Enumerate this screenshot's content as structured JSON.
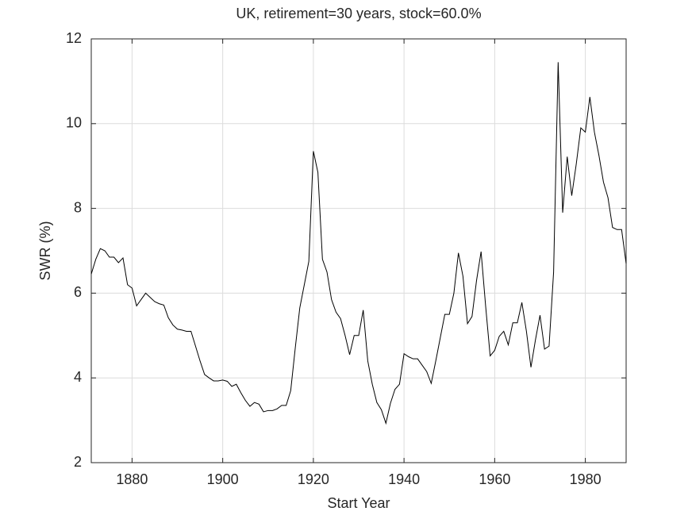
{
  "chart_data": {
    "type": "line",
    "title": "UK, retirement=30 years, stock=60.0%",
    "xlabel": "Start Year",
    "ylabel": "SWR (%)",
    "x": [
      1871,
      1872,
      1873,
      1874,
      1875,
      1876,
      1877,
      1878,
      1879,
      1880,
      1881,
      1882,
      1883,
      1884,
      1885,
      1886,
      1887,
      1888,
      1889,
      1890,
      1891,
      1892,
      1893,
      1894,
      1895,
      1896,
      1897,
      1898,
      1899,
      1900,
      1901,
      1902,
      1903,
      1904,
      1905,
      1906,
      1907,
      1908,
      1909,
      1910,
      1911,
      1912,
      1913,
      1914,
      1915,
      1916,
      1917,
      1918,
      1919,
      1920,
      1921,
      1922,
      1923,
      1924,
      1925,
      1926,
      1927,
      1928,
      1929,
      1930,
      1931,
      1932,
      1933,
      1934,
      1935,
      1936,
      1937,
      1938,
      1939,
      1940,
      1941,
      1942,
      1943,
      1944,
      1945,
      1946,
      1947,
      1948,
      1949,
      1950,
      1951,
      1952,
      1953,
      1954,
      1955,
      1956,
      1957,
      1958,
      1959,
      1960,
      1961,
      1962,
      1963,
      1964,
      1965,
      1966,
      1967,
      1968,
      1969,
      1970,
      1971,
      1972,
      1973,
      1974,
      1975,
      1976,
      1977,
      1978,
      1979,
      1980,
      1981,
      1982,
      1983,
      1984,
      1985,
      1986,
      1987,
      1988,
      1989
    ],
    "series": [
      {
        "name": "SWR",
        "color": "#000000",
        "values": [
          6.45,
          6.8,
          7.05,
          7.0,
          6.85,
          6.85,
          6.72,
          6.83,
          6.2,
          6.12,
          5.7,
          5.85,
          6.0,
          5.9,
          5.8,
          5.75,
          5.72,
          5.42,
          5.25,
          5.15,
          5.13,
          5.1,
          5.1,
          4.75,
          4.4,
          4.08,
          4.0,
          3.93,
          3.93,
          3.95,
          3.92,
          3.8,
          3.85,
          3.65,
          3.47,
          3.33,
          3.42,
          3.38,
          3.2,
          3.23,
          3.23,
          3.27,
          3.35,
          3.35,
          3.7,
          4.7,
          5.65,
          6.2,
          6.75,
          9.35,
          8.85,
          6.8,
          6.5,
          5.85,
          5.55,
          5.4,
          5.0,
          4.55,
          5.0,
          5.0,
          5.6,
          4.4,
          3.85,
          3.42,
          3.25,
          2.93,
          3.4,
          3.73,
          3.85,
          4.57,
          4.5,
          4.45,
          4.45,
          4.3,
          4.15,
          3.87,
          4.4,
          4.95,
          5.5,
          5.5,
          6.0,
          6.95,
          6.4,
          5.28,
          5.45,
          6.3,
          6.98,
          5.7,
          4.52,
          4.65,
          4.98,
          5.1,
          4.78,
          5.3,
          5.3,
          5.78,
          5.1,
          4.25,
          4.9,
          5.48,
          4.68,
          4.75,
          6.5,
          11.45,
          7.9,
          9.22,
          8.3,
          9.05,
          9.9,
          9.8,
          10.63,
          9.8,
          9.25,
          8.62,
          8.25,
          7.55,
          7.5,
          7.5,
          6.7
        ]
      }
    ],
    "xlim": [
      1871,
      1989
    ],
    "xticks": [
      1880,
      1900,
      1920,
      1940,
      1960,
      1980
    ],
    "ylim": [
      2,
      12
    ],
    "yticks": [
      2,
      4,
      6,
      8,
      10,
      12
    ],
    "grid": true
  }
}
